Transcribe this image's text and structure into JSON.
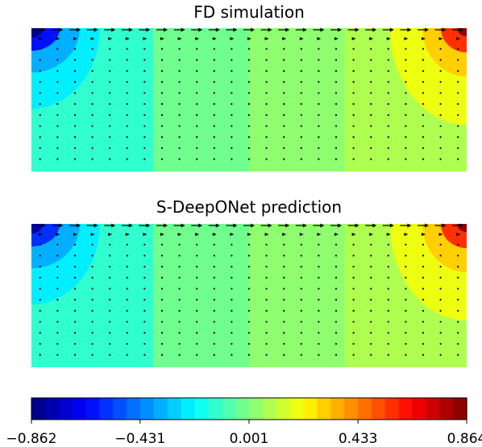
{
  "chart_data": [
    {
      "type": "heatmap",
      "title": "FD simulation",
      "field": "pressure-like scalar with velocity quiver arrows",
      "values_estimated": {
        "corner_top_left": -0.862,
        "near_left_wall": -0.35,
        "column_band_1": -0.12,
        "column_band_2": -0.05,
        "column_band_3": 0.02,
        "column_band_4": 0.08,
        "near_right_wall": 0.3,
        "corner_top_right": 0.864
      },
      "arrows": {
        "grid_cols": 25,
        "grid_rows": 13,
        "top_row": "long arrows pointing right (lid-driven flow)",
        "interior": "small dots"
      }
    },
    {
      "type": "heatmap",
      "title": "S-DeepONet prediction",
      "field": "pressure-like scalar with velocity quiver arrows",
      "values_estimated": {
        "corner_top_left": -0.8,
        "near_left_wall": -0.33,
        "column_band_1": -0.12,
        "column_band_2": -0.05,
        "column_band_3": 0.02,
        "column_band_4": 0.08,
        "near_right_wall": 0.28,
        "corner_top_right": 0.82
      },
      "arrows": {
        "grid_cols": 25,
        "grid_rows": 13,
        "top_row": "long arrows pointing right (lid-driven flow)",
        "interior": "small dots"
      }
    }
  ],
  "colorbar": {
    "colormap": "jet",
    "levels": 32,
    "min": -0.862,
    "max": 0.864,
    "tick_values": [
      -0.862,
      -0.431,
      0.001,
      0.433,
      0.864
    ],
    "tick_labels": [
      "−0.862",
      "−0.431",
      "0.001",
      "0.433",
      "0.864"
    ]
  },
  "colors": {
    "background": "#ffffff",
    "arrow": "#000000"
  }
}
